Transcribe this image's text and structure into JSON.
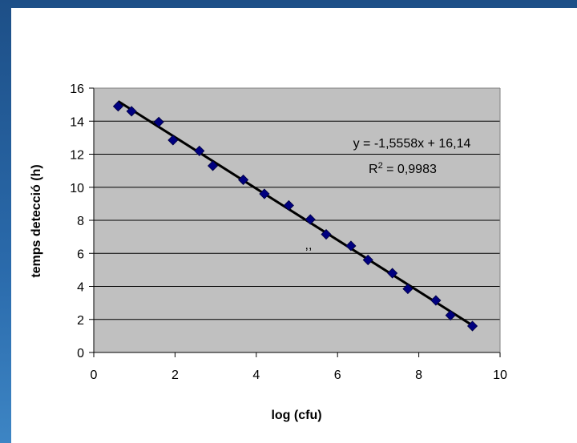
{
  "colors": {
    "background_gradient_top": "#1d4f87",
    "background_gradient_bottom": "#3d85c4",
    "panel": "#ffffff",
    "plot_area": "#c0c0c0",
    "marker": "#000080",
    "trendline": "#000000"
  },
  "chart_data": {
    "type": "scatter",
    "title": "",
    "xlabel": "log (cfu)",
    "ylabel": "temps detecció (h)",
    "xlim": [
      0,
      10
    ],
    "ylim": [
      0,
      16
    ],
    "x_ticks": [
      "0",
      "2",
      "4",
      "6",
      "8",
      "10"
    ],
    "y_ticks": [
      "0",
      "2",
      "4",
      "6",
      "8",
      "10",
      "12",
      "14",
      "16"
    ],
    "grid": "horizontal",
    "legend": "none",
    "marker": "diamond",
    "series": [
      {
        "x": [
          0.6,
          0.93,
          1.6,
          1.95,
          2.6,
          2.93,
          3.68,
          4.2,
          4.8,
          5.33,
          5.72,
          6.33,
          6.75,
          7.35,
          7.73,
          8.42,
          8.78,
          9.32
        ],
        "y": [
          14.9,
          14.6,
          13.95,
          12.85,
          12.2,
          11.3,
          10.45,
          9.6,
          8.9,
          8.05,
          7.15,
          6.45,
          5.6,
          4.8,
          3.85,
          3.15,
          2.25,
          1.6
        ]
      }
    ],
    "trendline": {
      "type": "linear",
      "slope": -1.5558,
      "intercept": 16.14,
      "x_range": [
        0.6,
        9.32
      ],
      "equation_text": "y = -1,5558x + 16,14",
      "r2_prefix": "R",
      "r2_sup": "2",
      "r2_suffix": " = 0,9983"
    },
    "annotations": [
      ",,"
    ]
  }
}
